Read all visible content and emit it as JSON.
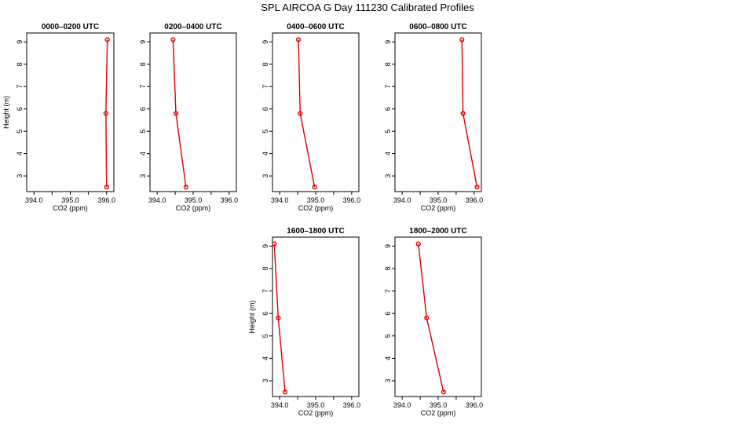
{
  "figure": {
    "title": "SPL AIRCOA G  Day 111230  Calibrated Profiles"
  },
  "style": {
    "series_color": "#dd0000",
    "axis_color": "#000000",
    "background": "#ffffff"
  },
  "chart_data": [
    {
      "type": "line",
      "title": "0000–0200 UTC",
      "xlabel": "CO2 (ppm)",
      "ylabel": "Height (m)",
      "xlim": [
        393.8,
        396.2
      ],
      "ylim": [
        2.3,
        9.4
      ],
      "xticks": [
        394.0,
        394.5,
        395.0,
        395.5,
        396.0
      ],
      "xtick_labels": [
        "394.0",
        "",
        "395.0",
        "",
        "396.0"
      ],
      "yticks": [
        3,
        4,
        5,
        6,
        7,
        8,
        9
      ],
      "ytick_labels": [
        "3",
        "4",
        "5",
        "6",
        "7",
        "8",
        "9"
      ],
      "grid": false,
      "series": [
        {
          "x": [
            396.02,
            395.98,
            396.0
          ],
          "y": [
            9.1,
            5.8,
            2.5
          ]
        }
      ]
    },
    {
      "type": "line",
      "title": "0200–0400 UTC",
      "xlabel": "CO2 (ppm)",
      "ylabel": "",
      "xlim": [
        393.8,
        396.2
      ],
      "ylim": [
        2.3,
        9.4
      ],
      "xticks": [
        394.0,
        394.5,
        395.0,
        395.5,
        396.0
      ],
      "xtick_labels": [
        "394.0",
        "",
        "395.0",
        "",
        "396.0"
      ],
      "yticks": [
        3,
        4,
        5,
        6,
        7,
        8,
        9
      ],
      "ytick_labels": [
        "3",
        "4",
        "5",
        "6",
        "7",
        "8",
        "9"
      ],
      "grid": false,
      "series": [
        {
          "x": [
            394.44,
            394.52,
            394.8
          ],
          "y": [
            9.1,
            5.8,
            2.5
          ]
        }
      ]
    },
    {
      "type": "line",
      "title": "0400–0600 UTC",
      "xlabel": "CO2 (ppm)",
      "ylabel": "",
      "xlim": [
        393.8,
        396.2
      ],
      "ylim": [
        2.3,
        9.4
      ],
      "xticks": [
        394.0,
        394.5,
        395.0,
        395.5,
        396.0
      ],
      "xtick_labels": [
        "394.0",
        "",
        "395.0",
        "",
        "396.0"
      ],
      "yticks": [
        3,
        4,
        5,
        6,
        7,
        8,
        9
      ],
      "ytick_labels": [
        "3",
        "4",
        "5",
        "6",
        "7",
        "8",
        "9"
      ],
      "grid": false,
      "series": [
        {
          "x": [
            394.52,
            394.57,
            394.97
          ],
          "y": [
            9.1,
            5.8,
            2.5
          ]
        }
      ]
    },
    {
      "type": "line",
      "title": "0600–0800 UTC",
      "xlabel": "CO2 (ppm)",
      "ylabel": "",
      "xlim": [
        393.8,
        396.2
      ],
      "ylim": [
        2.3,
        9.4
      ],
      "xticks": [
        394.0,
        394.5,
        395.0,
        395.5,
        396.0
      ],
      "xtick_labels": [
        "394.0",
        "",
        "395.0",
        "",
        "396.0"
      ],
      "yticks": [
        3,
        4,
        5,
        6,
        7,
        8,
        9
      ],
      "ytick_labels": [
        "3",
        "4",
        "5",
        "6",
        "7",
        "8",
        "9"
      ],
      "grid": false,
      "series": [
        {
          "x": [
            395.66,
            395.69,
            396.08
          ],
          "y": [
            9.1,
            5.8,
            2.5
          ]
        }
      ]
    },
    {
      "type": "line",
      "title": "1600–1800 UTC",
      "xlabel": "CO2 (ppm)",
      "ylabel": "Height (m)",
      "xlim": [
        393.8,
        396.2
      ],
      "ylim": [
        2.3,
        9.4
      ],
      "xticks": [
        394.0,
        394.5,
        395.0,
        395.5,
        396.0
      ],
      "xtick_labels": [
        "394.0",
        "",
        "395.0",
        "",
        "396.0"
      ],
      "yticks": [
        3,
        4,
        5,
        6,
        7,
        8,
        9
      ],
      "ytick_labels": [
        "3",
        "4",
        "5",
        "6",
        "7",
        "8",
        "9"
      ],
      "grid": false,
      "series": [
        {
          "x": [
            393.85,
            393.96,
            394.15
          ],
          "y": [
            9.1,
            5.8,
            2.5
          ]
        }
      ]
    },
    {
      "type": "line",
      "title": "1800–2000 UTC",
      "xlabel": "CO2 (ppm)",
      "ylabel": "",
      "xlim": [
        393.8,
        396.2
      ],
      "ylim": [
        2.3,
        9.4
      ],
      "xticks": [
        394.0,
        394.5,
        395.0,
        395.5,
        396.0
      ],
      "xtick_labels": [
        "394.0",
        "",
        "395.0",
        "",
        "396.0"
      ],
      "yticks": [
        3,
        4,
        5,
        6,
        7,
        8,
        9
      ],
      "ytick_labels": [
        "3",
        "4",
        "5",
        "6",
        "7",
        "8",
        "9"
      ],
      "grid": false,
      "series": [
        {
          "x": [
            394.45,
            394.68,
            395.15
          ],
          "y": [
            9.1,
            5.8,
            2.5
          ]
        }
      ]
    }
  ]
}
